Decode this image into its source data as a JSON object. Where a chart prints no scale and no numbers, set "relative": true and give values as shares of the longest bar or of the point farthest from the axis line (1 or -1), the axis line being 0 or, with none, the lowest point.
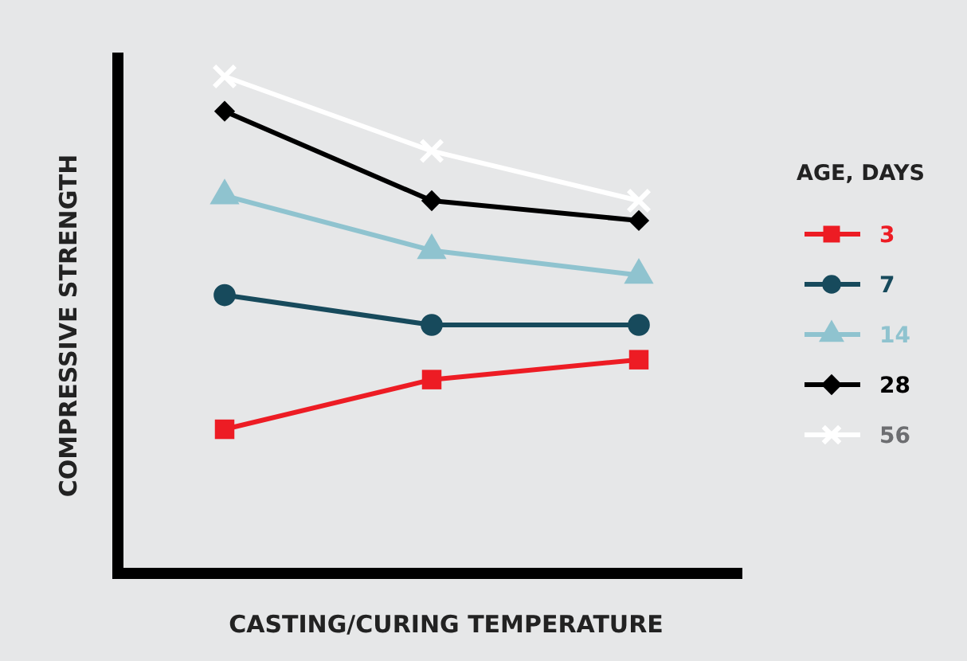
{
  "chart_data": {
    "type": "line",
    "relative": true,
    "xlabel": "CASTING/CURING TEMPERATURE",
    "ylabel": "COMPRESSIVE STRENGTH",
    "legend_title": "AGE, DAYS",
    "legend": "right",
    "categories": [
      null,
      null,
      null
    ],
    "series": [
      {
        "name": "3",
        "color": "#ed1c24",
        "marker": "square",
        "values": [
          0.29,
          0.39,
          0.43
        ]
      },
      {
        "name": "7",
        "color": "#174a5c",
        "marker": "circle",
        "values": [
          0.56,
          0.5,
          0.5
        ]
      },
      {
        "name": "14",
        "color": "#8fc3cf",
        "marker": "triangle",
        "values": [
          0.76,
          0.65,
          0.6
        ]
      },
      {
        "name": "28",
        "color": "#000000",
        "marker": "diamond",
        "values": [
          0.93,
          0.75,
          0.71
        ]
      },
      {
        "name": "56",
        "color": "#ffffff",
        "marker": "cross",
        "values": [
          1,
          0.85,
          0.75
        ]
      }
    ]
  }
}
